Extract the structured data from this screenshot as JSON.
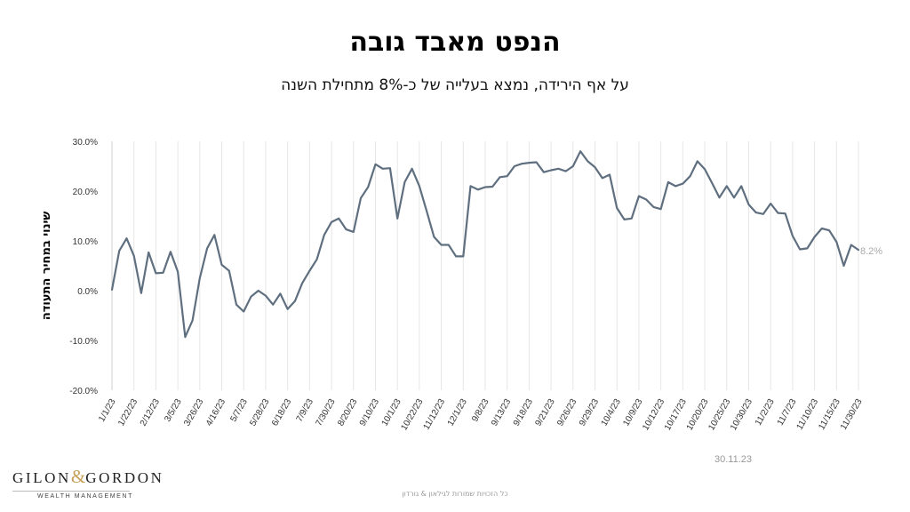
{
  "title": "הנפט מאבד גובה",
  "subtitle": "על אף הירידה, נמצא בעלייה של כ-8% מתחילת השנה",
  "date_note": "30.11.23",
  "copyright": "כל הזכויות שמורות לגילאון & גורדון",
  "logo": {
    "main_left": "GILON",
    "amp": "&",
    "main_right": "GORDON",
    "sub": "WEALTH MANAGEMENT"
  },
  "colors": {
    "line": "#5f6f7f",
    "grid": "#e6e6e6",
    "axis_text": "#333333",
    "last_label": "#aaaaaa",
    "logo_accent": "#c8a15a"
  },
  "chart_data": {
    "type": "line",
    "ylabel": "שינוי במחיר התעודה",
    "xlabel": "",
    "ylim": [
      -20,
      30
    ],
    "yticks": [
      30,
      20,
      10,
      0,
      -10,
      -20
    ],
    "ytick_labels": [
      "30.0%",
      "20.0%",
      "10.0%",
      "0.0%",
      "-10.0%",
      "-20.0%"
    ],
    "grid": "vertical",
    "xtick_labels": [
      "1/1/23",
      "1/22/23",
      "2/12/23",
      "3/5/23",
      "3/26/23",
      "4/16/23",
      "5/7/23",
      "5/28/23",
      "6/18/23",
      "7/9/23",
      "7/30/23",
      "8/20/23",
      "9/10/23",
      "10/1/23",
      "10/22/23",
      "11/12/23",
      "12/1/23",
      "9/8/23",
      "9/13/23",
      "9/18/23",
      "9/21/23",
      "9/26/23",
      "9/29/23",
      "10/4/23",
      "10/9/23",
      "10/12/23",
      "10/17/23",
      "10/20/23",
      "10/25/23",
      "10/30/23",
      "11/2/23",
      "11/7/23",
      "11/10/23",
      "11/15/23",
      "11/30/23"
    ],
    "last_value_label": "8.2%",
    "series": [
      {
        "values": [
          0.2,
          8,
          10.5,
          7,
          -0.5,
          7.7,
          3.5,
          3.6,
          7.8,
          3.8,
          -9.3,
          -6,
          2.5,
          8.5,
          11.2,
          5.2,
          4,
          -2.8,
          -4.2,
          -1.2,
          0,
          -1,
          -2.8,
          -0.6,
          -3.7,
          -2.1,
          1.5,
          4,
          6.3,
          11.2,
          13.8,
          14.5,
          12.3,
          11.8,
          18.6,
          20.8,
          25.4,
          24.5,
          24.6,
          14.5,
          21.8,
          24.5,
          21,
          16,
          10.8,
          9.2,
          9.2,
          6.9,
          6.9,
          21,
          20.3,
          20.8,
          20.9,
          22.8,
          23,
          25,
          25.5,
          25.7,
          25.8,
          23.8,
          24.2,
          24.5,
          24,
          25,
          28,
          26,
          24.8,
          22.6,
          23.3,
          16.6,
          14.3,
          14.5,
          19,
          18.3,
          16.8,
          16.4,
          21.8,
          21,
          21.5,
          23,
          26,
          24.4,
          21.6,
          18.7,
          21,
          18.7,
          21,
          17.3,
          15.7,
          15.4,
          17.5,
          15.6,
          15.5,
          11,
          8.3,
          8.5,
          10.8,
          12.5,
          12.1,
          9.8,
          5,
          9.2,
          8.2
        ]
      }
    ]
  }
}
